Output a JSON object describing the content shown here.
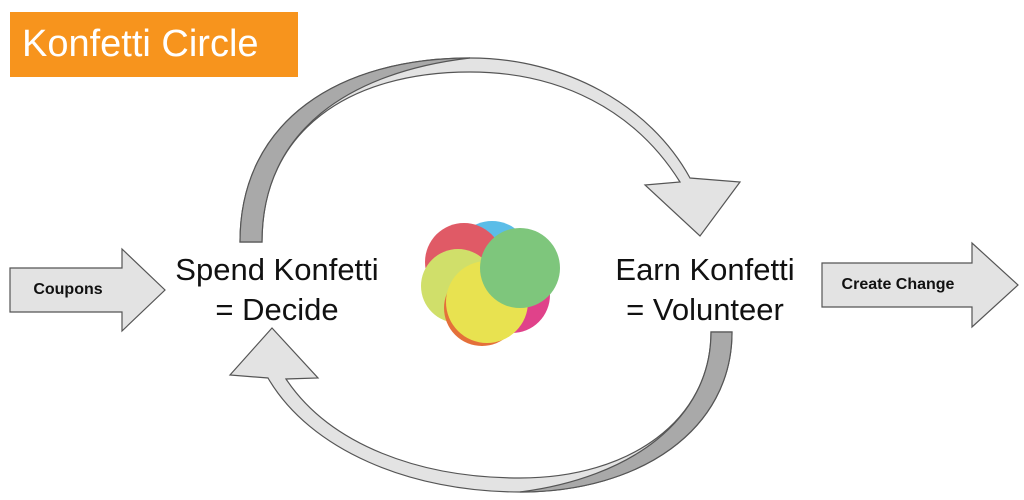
{
  "title": "Konfetti Circle",
  "left_node": {
    "line1": "Spend Konfetti",
    "line2": "= Decide"
  },
  "right_node": {
    "line1": "Earn Konfetti",
    "line2": "= Volunteer"
  },
  "input_arrow": {
    "label": "Coupons"
  },
  "output_arrow": {
    "label": "Create Change"
  },
  "logo": {
    "icon": "konfetti-logo-icon",
    "colors": [
      "#5bbde8",
      "#e05a66",
      "#d0df6a",
      "#e0428a",
      "#e4703a",
      "#e8e250",
      "#7ec67c"
    ]
  },
  "colors": {
    "title_background": "#f7941d",
    "arrow_fill": "#e3e3e3",
    "arrow_shadow": "#a9a9a9",
    "arrow_stroke": "#555555"
  }
}
